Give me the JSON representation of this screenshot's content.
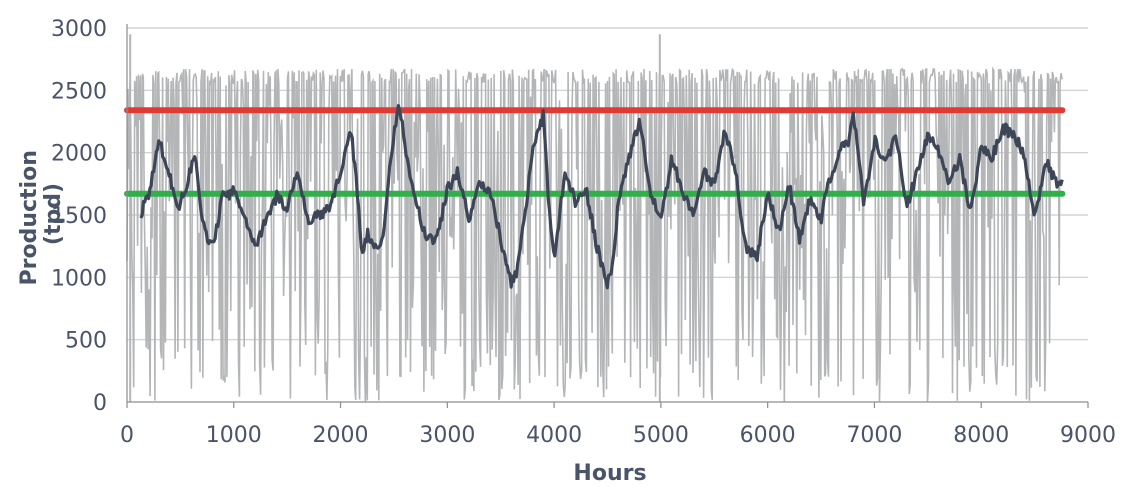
{
  "chart_data": {
    "type": "line",
    "title": "",
    "xlabel": "Hours",
    "ylabel_lines": [
      "Production",
      "(tpd)"
    ],
    "xlim": [
      0,
      9000
    ],
    "ylim": [
      0,
      3000
    ],
    "x_ticks": [
      0,
      1000,
      2000,
      3000,
      4000,
      5000,
      6000,
      7000,
      8000,
      9000
    ],
    "y_ticks": [
      0,
      500,
      1000,
      1500,
      2000,
      2500,
      3000
    ],
    "grid": "horizontal",
    "legend": "none",
    "series": [
      {
        "kind": "hourly_noise_band",
        "color": "#b3b5b7",
        "x_range": [
          0,
          8760
        ],
        "min": 0,
        "max": 2950,
        "typical_cap": 2670
      },
      {
        "kind": "moving_average",
        "color": "#3c4656",
        "x": [
          130,
          200,
          300,
          400,
          480,
          560,
          640,
          700,
          760,
          820,
          900,
          960,
          1000,
          1080,
          1150,
          1200,
          1250,
          1300,
          1400,
          1500,
          1600,
          1700,
          1800,
          1900,
          2000,
          2100,
          2150,
          2200,
          2250,
          2300,
          2350,
          2400,
          2450,
          2500,
          2550,
          2600,
          2650,
          2700,
          2750,
          2800,
          2850,
          2900,
          3000,
          3100,
          3200,
          3300,
          3400,
          3500,
          3550,
          3600,
          3650,
          3700,
          3800,
          3900,
          3950,
          4000,
          4100,
          4200,
          4300,
          4400,
          4500,
          4550,
          4600,
          4700,
          4800,
          4900,
          5000,
          5100,
          5200,
          5300,
          5400,
          5500,
          5600,
          5700,
          5750,
          5800,
          5900,
          6000,
          6100,
          6200,
          6300,
          6400,
          6500,
          6550,
          6600,
          6700,
          6750,
          6800,
          6900,
          7000,
          7100,
          7200,
          7300,
          7400,
          7500,
          7600,
          7700,
          7800,
          7900,
          8000,
          8100,
          8200,
          8300,
          8400,
          8500,
          8550,
          8600,
          8700,
          8760
        ],
        "y": [
          1520,
          1650,
          2100,
          1800,
          1550,
          1750,
          2020,
          1500,
          1250,
          1300,
          1700,
          1650,
          1700,
          1500,
          1350,
          1250,
          1350,
          1450,
          1650,
          1550,
          1850,
          1450,
          1500,
          1550,
          1850,
          2180,
          1750,
          1200,
          1350,
          1300,
          1200,
          1350,
          1800,
          2150,
          2380,
          2100,
          1800,
          1650,
          1450,
          1350,
          1300,
          1300,
          1700,
          1850,
          1450,
          1750,
          1700,
          1300,
          1100,
          950,
          1050,
          1350,
          2000,
          2300,
          1600,
          1150,
          1850,
          1600,
          1700,
          1250,
          950,
          1100,
          1600,
          1950,
          2270,
          1700,
          1450,
          1950,
          1700,
          1500,
          1850,
          1750,
          2200,
          1850,
          1500,
          1250,
          1150,
          1700,
          1350,
          1750,
          1300,
          1650,
          1450,
          1700,
          1800,
          2100,
          2050,
          2350,
          1600,
          2100,
          1900,
          2150,
          1550,
          1850,
          2150,
          2000,
          1750,
          1950,
          1500,
          2050,
          1950,
          2200,
          2150,
          2000,
          1500,
          1700,
          1950,
          1750,
          1750
        ]
      },
      {
        "kind": "reference_line",
        "color": "#e03a35",
        "y": 2340,
        "x_range": [
          0,
          8760
        ]
      },
      {
        "kind": "reference_line",
        "color": "#2fb04a",
        "y": 1670,
        "x_range": [
          0,
          8760
        ]
      }
    ]
  }
}
